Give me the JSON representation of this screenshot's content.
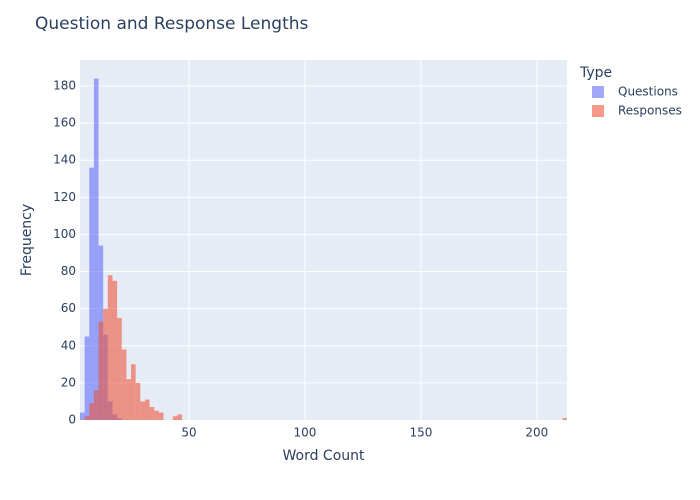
{
  "chart_data": {
    "type": "histogram",
    "title": "Question and Response Lengths",
    "x_label": "Word Count",
    "y_label": "Frequency",
    "legend_title": "Type",
    "legend_position": "right",
    "barmode": "overlay",
    "opacity": 0.6,
    "grid": true,
    "xlim": [
      3,
      213
    ],
    "xticks": [
      50,
      100,
      150,
      200
    ],
    "ylim": [
      0,
      194
    ],
    "yticks": [
      0,
      20,
      40,
      60,
      80,
      100,
      120,
      140,
      160,
      180
    ],
    "series": [
      {
        "name": "Questions",
        "color": "#636efa",
        "bins": [
          3,
          5,
          7,
          9,
          11,
          13,
          15,
          17,
          19,
          21
        ],
        "values": [
          4,
          45,
          136,
          184,
          94,
          46,
          10,
          3,
          1
        ]
      },
      {
        "name": "Responses",
        "color": "#EF553B",
        "bins": [
          5,
          7,
          9,
          11,
          13,
          15,
          17,
          19,
          21,
          23,
          25,
          27,
          29,
          31,
          33,
          35,
          37,
          39,
          41,
          43,
          45,
          47,
          211,
          213
        ],
        "values": [
          2,
          9,
          16,
          53,
          60,
          78,
          75,
          55,
          38,
          22,
          30,
          20,
          10,
          11,
          7,
          5,
          4,
          0,
          0,
          2,
          3,
          0,
          1
        ]
      }
    ]
  }
}
